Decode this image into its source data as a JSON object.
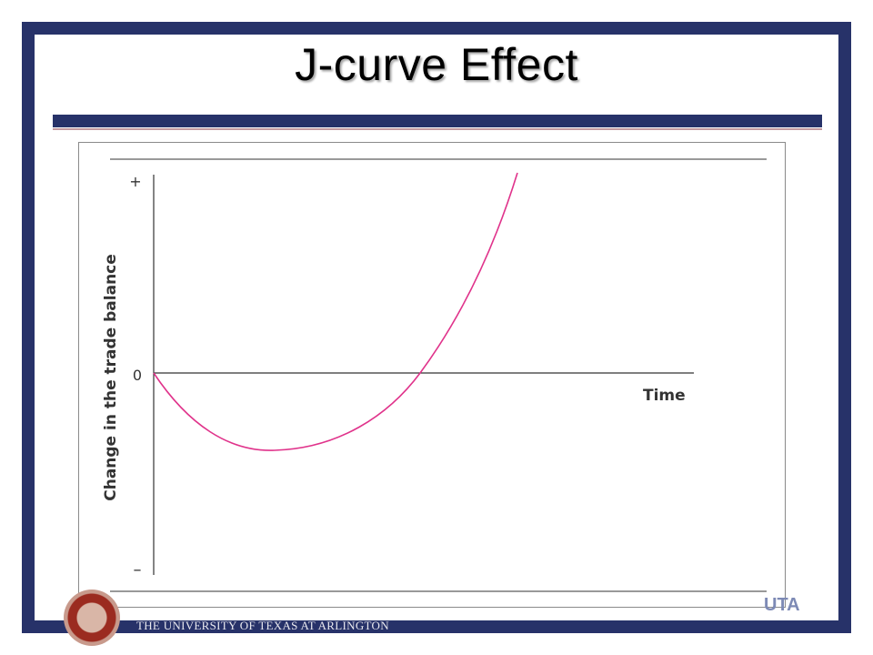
{
  "slide": {
    "title": "J-curve Effect",
    "footer": "THE UNIVERSITY OF TEXAS AT ARLINGTON",
    "logo_mark": "UTA"
  },
  "diagram": {
    "y_axis_label": "Change in the trade balance",
    "x_axis_label": "Time",
    "tick_plus": "+",
    "tick_zero": "0",
    "tick_minus": "–",
    "curve_color": "#e0338b"
  },
  "colors": {
    "frame": "#273269",
    "accent_line": "#c49aa0"
  }
}
